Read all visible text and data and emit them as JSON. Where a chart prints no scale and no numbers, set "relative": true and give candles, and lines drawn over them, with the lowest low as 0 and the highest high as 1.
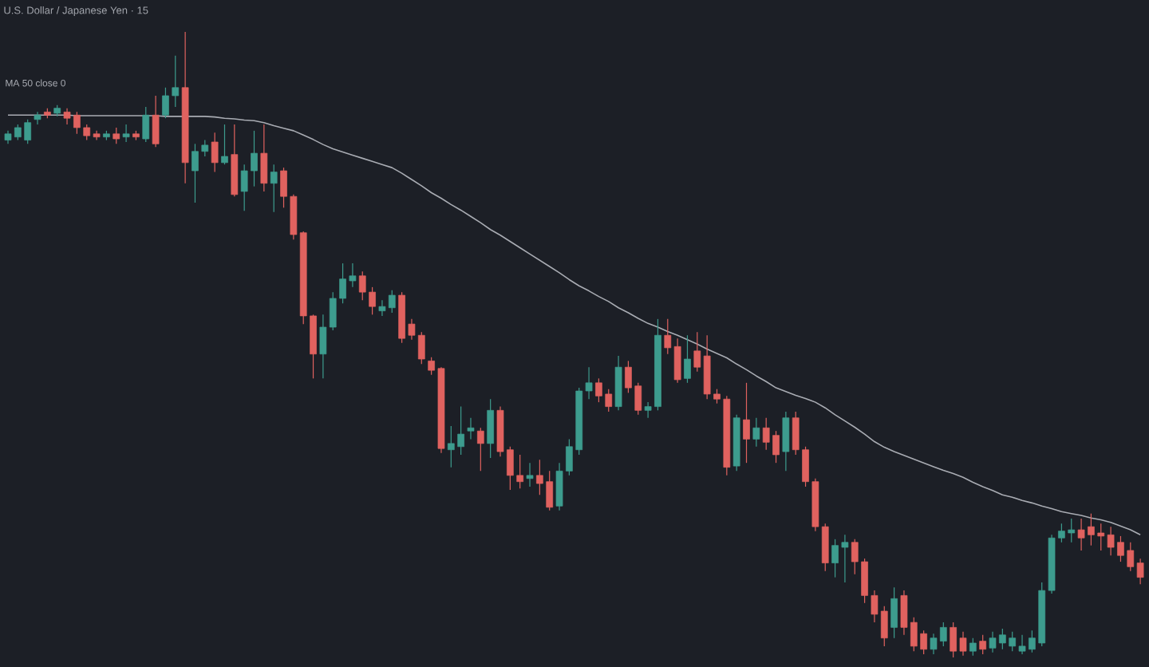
{
  "chart_data": {
    "type": "candlestick",
    "title": "U.S. Dollar / Japanese Yen · 15",
    "relative": true,
    "legend": "top left",
    "categories": [
      null,
      null,
      null,
      null,
      null,
      null,
      null,
      null,
      null,
      null,
      null,
      null,
      null,
      null,
      null,
      null,
      null,
      null,
      null,
      null,
      null,
      null,
      null,
      null,
      null,
      null,
      null,
      null,
      null,
      null,
      null,
      null,
      null,
      null,
      null,
      null,
      null,
      null,
      null,
      null,
      null,
      null,
      null,
      null,
      null,
      null,
      null,
      null,
      null,
      null,
      null,
      null,
      null,
      null,
      null,
      null,
      null,
      null,
      null,
      null,
      null,
      null,
      null,
      null,
      null,
      null,
      null,
      null,
      null,
      null,
      null,
      null,
      null,
      null,
      null,
      null,
      null,
      null,
      null,
      null,
      null,
      null,
      null,
      null,
      null,
      null,
      null,
      null,
      null,
      null,
      null,
      null,
      null,
      null,
      null,
      null,
      null,
      null,
      null,
      null,
      null,
      null,
      null,
      null,
      null,
      null,
      null,
      null,
      null,
      null,
      null,
      null,
      null,
      null,
      null,
      null
    ],
    "ohlc": [
      [
        0.827,
        0.842,
        0.821,
        0.837
      ],
      [
        0.832,
        0.852,
        0.827,
        0.847
      ],
      [
        0.827,
        0.86,
        0.821,
        0.855
      ],
      [
        0.86,
        0.872,
        0.852,
        0.867
      ],
      [
        0.872,
        0.878,
        0.862,
        0.867
      ],
      [
        0.87,
        0.883,
        0.865,
        0.878
      ],
      [
        0.872,
        0.878,
        0.852,
        0.862
      ],
      [
        0.867,
        0.872,
        0.837,
        0.847
      ],
      [
        0.847,
        0.852,
        0.827,
        0.834
      ],
      [
        0.837,
        0.842,
        0.827,
        0.832
      ],
      [
        0.832,
        0.842,
        0.827,
        0.837
      ],
      [
        0.837,
        0.847,
        0.821,
        0.829
      ],
      [
        0.832,
        0.852,
        0.824,
        0.837
      ],
      [
        0.837,
        0.842,
        0.827,
        0.832
      ],
      [
        0.829,
        0.88,
        0.824,
        0.867
      ],
      [
        0.867,
        0.898,
        0.816,
        0.821
      ],
      [
        0.867,
        0.911,
        0.862,
        0.898
      ],
      [
        0.898,
        0.962,
        0.88,
        0.911
      ],
      [
        0.911,
        1,
        0.758,
        0.791
      ],
      [
        0.778,
        0.821,
        0.727,
        0.809
      ],
      [
        0.809,
        0.827,
        0.801,
        0.819
      ],
      [
        0.824,
        0.839,
        0.776,
        0.791
      ],
      [
        0.791,
        0.852,
        0.788,
        0.801
      ],
      [
        0.804,
        0.852,
        0.737,
        0.74
      ],
      [
        0.745,
        0.788,
        0.714,
        0.778
      ],
      [
        0.778,
        0.842,
        0.753,
        0.806
      ],
      [
        0.806,
        0.852,
        0.745,
        0.758
      ],
      [
        0.758,
        0.788,
        0.712,
        0.776
      ],
      [
        0.778,
        0.783,
        0.719,
        0.737
      ],
      [
        0.737,
        0.74,
        0.668,
        0.676
      ],
      [
        0.679,
        0.681,
        0.533,
        0.546
      ],
      [
        0.546,
        0.548,
        0.446,
        0.485
      ],
      [
        0.485,
        0.548,
        0.446,
        0.528
      ],
      [
        0.528,
        0.584,
        0.523,
        0.574
      ],
      [
        0.574,
        0.63,
        0.566,
        0.605
      ],
      [
        0.602,
        0.63,
        0.592,
        0.61
      ],
      [
        0.61,
        0.617,
        0.571,
        0.584
      ],
      [
        0.584,
        0.592,
        0.548,
        0.561
      ],
      [
        0.554,
        0.571,
        0.546,
        0.561
      ],
      [
        0.559,
        0.587,
        0.551,
        0.579
      ],
      [
        0.579,
        0.584,
        0.503,
        0.51
      ],
      [
        0.533,
        0.541,
        0.508,
        0.515
      ],
      [
        0.515,
        0.52,
        0.469,
        0.477
      ],
      [
        0.474,
        0.48,
        0.452,
        0.459
      ],
      [
        0.462,
        0.464,
        0.327,
        0.334
      ],
      [
        0.332,
        0.37,
        0.304,
        0.342
      ],
      [
        0.337,
        0.401,
        0.324,
        0.357
      ],
      [
        0.362,
        0.383,
        0.349,
        0.367
      ],
      [
        0.362,
        0.367,
        0.298,
        0.342
      ],
      [
        0.342,
        0.413,
        0.319,
        0.395
      ],
      [
        0.395,
        0.401,
        0.321,
        0.329
      ],
      [
        0.332,
        0.337,
        0.268,
        0.291
      ],
      [
        0.291,
        0.324,
        0.27,
        0.281
      ],
      [
        0.286,
        0.311,
        0.273,
        0.291
      ],
      [
        0.291,
        0.316,
        0.26,
        0.278
      ],
      [
        0.281,
        0.298,
        0.235,
        0.24
      ],
      [
        0.242,
        0.311,
        0.235,
        0.298
      ],
      [
        0.298,
        0.349,
        0.291,
        0.337
      ],
      [
        0.332,
        0.431,
        0.324,
        0.426
      ],
      [
        0.426,
        0.464,
        0.413,
        0.439
      ],
      [
        0.439,
        0.446,
        0.408,
        0.418
      ],
      [
        0.421,
        0.429,
        0.393,
        0.401
      ],
      [
        0.401,
        0.482,
        0.395,
        0.464
      ],
      [
        0.464,
        0.474,
        0.423,
        0.431
      ],
      [
        0.434,
        0.439,
        0.388,
        0.395
      ],
      [
        0.395,
        0.408,
        0.383,
        0.401
      ],
      [
        0.401,
        0.541,
        0.395,
        0.515
      ],
      [
        0.515,
        0.541,
        0.485,
        0.495
      ],
      [
        0.497,
        0.51,
        0.439,
        0.444
      ],
      [
        0.446,
        0.515,
        0.439,
        0.477
      ],
      [
        0.49,
        0.52,
        0.457,
        0.464
      ],
      [
        0.482,
        0.515,
        0.413,
        0.421
      ],
      [
        0.421,
        0.429,
        0.406,
        0.413
      ],
      [
        0.413,
        0.418,
        0.291,
        0.304
      ],
      [
        0.306,
        0.388,
        0.298,
        0.383
      ],
      [
        0.38,
        0.439,
        0.311,
        0.349
      ],
      [
        0.349,
        0.383,
        0.337,
        0.367
      ],
      [
        0.367,
        0.383,
        0.332,
        0.344
      ],
      [
        0.355,
        0.362,
        0.311,
        0.324
      ],
      [
        0.329,
        0.393,
        0.298,
        0.383
      ],
      [
        0.383,
        0.393,
        0.324,
        0.332
      ],
      [
        0.332,
        0.337,
        0.273,
        0.281
      ],
      [
        0.281,
        0.286,
        0.202,
        0.209
      ],
      [
        0.209,
        0.214,
        0.138,
        0.151
      ],
      [
        0.151,
        0.189,
        0.128,
        0.179
      ],
      [
        0.176,
        0.196,
        0.12,
        0.184
      ],
      [
        0.184,
        0.189,
        0.133,
        0.153
      ],
      [
        0.153,
        0.158,
        0.087,
        0.099
      ],
      [
        0.099,
        0.107,
        0.056,
        0.069
      ],
      [
        0.074,
        0.082,
        0.018,
        0.031
      ],
      [
        0.048,
        0.112,
        0.031,
        0.094
      ],
      [
        0.099,
        0.107,
        0.036,
        0.048
      ],
      [
        0.056,
        0.064,
        0.01,
        0.018
      ],
      [
        0.038,
        0.043,
        0.005,
        0.013
      ],
      [
        0.013,
        0.038,
        0.005,
        0.031
      ],
      [
        0.026,
        0.056,
        0.018,
        0.048
      ],
      [
        0.048,
        0.056,
        0,
        0.01
      ],
      [
        0.031,
        0.041,
        0.003,
        0.01
      ],
      [
        0.01,
        0.031,
        0.003,
        0.023
      ],
      [
        0.026,
        0.036,
        0.005,
        0.013
      ],
      [
        0.015,
        0.041,
        0.008,
        0.031
      ],
      [
        0.023,
        0.046,
        0.013,
        0.036
      ],
      [
        0.018,
        0.041,
        0.01,
        0.031
      ],
      [
        0.01,
        0.036,
        0.005,
        0.018
      ],
      [
        0.013,
        0.043,
        0.008,
        0.031
      ],
      [
        0.023,
        0.12,
        0.018,
        0.107
      ],
      [
        0.107,
        0.196,
        0.102,
        0.191
      ],
      [
        0.191,
        0.214,
        0.184,
        0.202
      ],
      [
        0.199,
        0.222,
        0.184,
        0.204
      ],
      [
        0.204,
        0.222,
        0.171,
        0.191
      ],
      [
        0.209,
        0.23,
        0.179,
        0.196
      ],
      [
        0.199,
        0.214,
        0.171,
        0.194
      ],
      [
        0.196,
        0.209,
        0.163,
        0.176
      ],
      [
        0.184,
        0.194,
        0.153,
        0.163
      ],
      [
        0.171,
        0.184,
        0.138,
        0.145
      ],
      [
        0.151,
        0.158,
        0.117,
        0.128
      ]
    ],
    "colors": [
      "#3d9c8e",
      "#3d9c8e",
      "#3d9c8e",
      "#3d9c8e",
      "#e0625f",
      "#3d9c8e",
      "#e0625f",
      "#e0625f",
      "#e0625f",
      "#e0625f",
      "#3d9c8e",
      "#e0625f",
      "#3d9c8e",
      "#e0625f",
      "#3d9c8e",
      "#e0625f",
      "#3d9c8e",
      "#3d9c8e",
      "#e0625f",
      "#3d9c8e",
      "#3d9c8e",
      "#e0625f",
      "#3d9c8e",
      "#e0625f",
      "#3d9c8e",
      "#3d9c8e",
      "#e0625f",
      "#3d9c8e",
      "#e0625f",
      "#e0625f",
      "#e0625f",
      "#e0625f",
      "#3d9c8e",
      "#3d9c8e",
      "#3d9c8e",
      "#3d9c8e",
      "#e0625f",
      "#e0625f",
      "#3d9c8e",
      "#3d9c8e",
      "#e0625f",
      "#e0625f",
      "#e0625f",
      "#e0625f",
      "#e0625f",
      "#3d9c8e",
      "#3d9c8e",
      "#3d9c8e",
      "#e0625f",
      "#3d9c8e",
      "#e0625f",
      "#e0625f",
      "#e0625f",
      "#3d9c8e",
      "#e0625f",
      "#e0625f",
      "#3d9c8e",
      "#3d9c8e",
      "#3d9c8e",
      "#3d9c8e",
      "#e0625f",
      "#e0625f",
      "#3d9c8e",
      "#e0625f",
      "#e0625f",
      "#3d9c8e",
      "#3d9c8e",
      "#e0625f",
      "#e0625f",
      "#3d9c8e",
      "#e0625f",
      "#e0625f",
      "#e0625f",
      "#e0625f",
      "#3d9c8e",
      "#e0625f",
      "#3d9c8e",
      "#e0625f",
      "#e0625f",
      "#3d9c8e",
      "#e0625f",
      "#e0625f",
      "#e0625f",
      "#e0625f",
      "#3d9c8e",
      "#3d9c8e",
      "#e0625f",
      "#e0625f",
      "#e0625f",
      "#e0625f",
      "#3d9c8e",
      "#e0625f",
      "#e0625f",
      "#e0625f",
      "#3d9c8e",
      "#3d9c8e",
      "#e0625f",
      "#e0625f",
      "#3d9c8e",
      "#e0625f",
      "#3d9c8e",
      "#3d9c8e",
      "#3d9c8e",
      "#3d9c8e",
      "#3d9c8e",
      "#3d9c8e",
      "#3d9c8e",
      "#3d9c8e",
      "#3d9c8e",
      "#e0625f",
      "#e0625f",
      "#e0625f",
      "#e0625f",
      "#e0625f",
      "#e0625f",
      "#e0625f"
    ],
    "series": [
      {
        "type": "line",
        "name": "MA 50 close 0",
        "color": "#a9acb3",
        "values": [
          0.867,
          0.867,
          0.867,
          0.867,
          0.867,
          0.867,
          0.867,
          0.866,
          0.866,
          0.866,
          0.866,
          0.866,
          0.866,
          0.866,
          0.866,
          0.866,
          0.865,
          0.865,
          0.865,
          0.865,
          0.865,
          0.864,
          0.862,
          0.861,
          0.859,
          0.858,
          0.855,
          0.85,
          0.846,
          0.842,
          0.835,
          0.828,
          0.82,
          0.813,
          0.808,
          0.803,
          0.798,
          0.793,
          0.788,
          0.783,
          0.774,
          0.764,
          0.754,
          0.743,
          0.734,
          0.724,
          0.715,
          0.705,
          0.695,
          0.684,
          0.675,
          0.665,
          0.655,
          0.645,
          0.635,
          0.625,
          0.615,
          0.604,
          0.594,
          0.586,
          0.577,
          0.569,
          0.559,
          0.551,
          0.542,
          0.534,
          0.528,
          0.521,
          0.515,
          0.508,
          0.501,
          0.493,
          0.486,
          0.479,
          0.469,
          0.46,
          0.45,
          0.441,
          0.431,
          0.425,
          0.419,
          0.414,
          0.408,
          0.399,
          0.388,
          0.378,
          0.368,
          0.357,
          0.345,
          0.336,
          0.329,
          0.323,
          0.317,
          0.311,
          0.305,
          0.299,
          0.294,
          0.288,
          0.28,
          0.273,
          0.267,
          0.26,
          0.256,
          0.251,
          0.247,
          0.242,
          0.238,
          0.233,
          0.23,
          0.227,
          0.223,
          0.22,
          0.216,
          0.21,
          0.204,
          0.196
        ]
      }
    ]
  }
}
